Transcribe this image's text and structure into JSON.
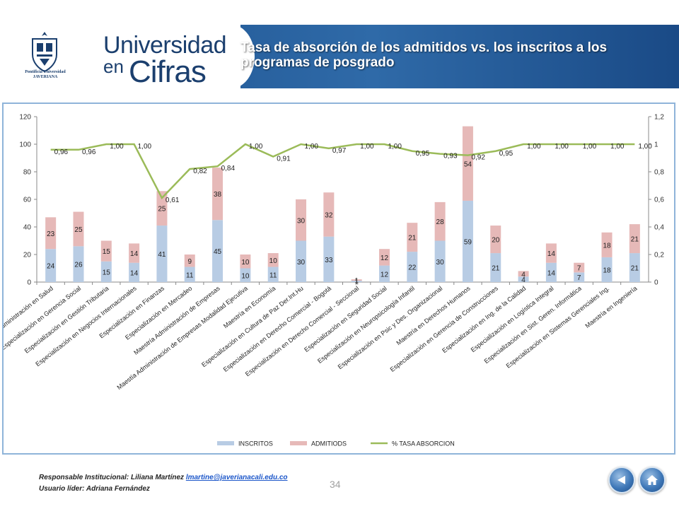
{
  "header": {
    "brand_line1": "Universidad",
    "brand_line2a": "en",
    "brand_line2b": "Cifras",
    "crest_text": "Pontificia Universidad JAVERIANA",
    "title": "Tasa de absorción de los admitidos vs. los inscritos a los programas de posgrado"
  },
  "footer": {
    "responsable_label": "Responsable Institucional: Liliana Martínez",
    "responsable_email": "lmartine@javerianacali.edu.co",
    "usuario": "Usuario líder: Adriana Fernández",
    "page_number": "34"
  },
  "colors": {
    "header_bg": "#1b4f8c",
    "inscritos": "#b8cce4",
    "admitidos": "#e6b9b8",
    "absorcion": "#9bbb59",
    "frame": "#8fb4d9"
  },
  "chart_data": {
    "type": "bar",
    "stacked": true,
    "categories": [
      "Especialización en Administración en Salud",
      "Especialización en Gerencia Social",
      "Especialización en Gestión Tributaria",
      "Especialización en Negocios Internacionales",
      "Especialización en Finanzas",
      "Especialización en Mercadeo",
      "Maestría Administración de Empresas",
      "Maestía Administración de Empresas Modalidad Ejecutiva",
      "Maestría en Economía",
      "Especialización en Cultura de Paz Der.Int.Hu",
      "Especialización en Derecho Comercial - Bogotá",
      "Especialización en Derecho Comercial - Seccional",
      "Especialización en Seguridad Social",
      "Especialización en Neuropsicología Infantil",
      "Especialización en Psic y Des. Organizacional",
      "Maestría en  Derechos Humanos",
      "Especialización en Gerencia de Construcciones",
      "Especialización en Ing. de la Calidad",
      "Especialización en Logística Integral",
      "Especialización en Sist. Geren. Informática",
      "Especialización en Sistemas Gerenciales Ing.",
      "Maestría en Ingeniería"
    ],
    "series": [
      {
        "name": "INSCRITOS",
        "axis": "left",
        "values": [
          24,
          26,
          15,
          14,
          41,
          11,
          45,
          10,
          11,
          30,
          33,
          1,
          12,
          22,
          30,
          59,
          21,
          4,
          14,
          7,
          18,
          21
        ]
      },
      {
        "name": "ADMITIODS",
        "axis": "left",
        "values": [
          23,
          25,
          15,
          14,
          25,
          9,
          38,
          10,
          10,
          30,
          32,
          1,
          12,
          21,
          28,
          54,
          20,
          4,
          14,
          7,
          18,
          21
        ]
      },
      {
        "name": "% TASA ABSORCION",
        "axis": "right",
        "type": "line",
        "values": [
          0.96,
          0.96,
          1.0,
          1.0,
          0.61,
          0.82,
          0.84,
          1.0,
          0.91,
          1.0,
          0.97,
          1.0,
          1.0,
          0.95,
          0.93,
          0.92,
          0.95,
          1.0,
          1.0,
          1.0,
          1.0,
          1.0
        ]
      }
    ],
    "line_labels": [
      "0,96",
      "0,96",
      "1,00",
      "1,00",
      "0,61",
      "0,82",
      "0,84",
      "1,00",
      "0,91",
      "1,00",
      "0,97",
      "1,00",
      "1,00",
      "0,95",
      "0,93",
      "0,92",
      "0,95",
      "1,00",
      "1,00",
      "1,00",
      "1,00",
      "1,00"
    ],
    "ylim": [
      0,
      120
    ],
    "yticks": [
      "0",
      "20",
      "40",
      "60",
      "80",
      "100",
      "120"
    ],
    "y2lim": [
      0,
      1.2
    ],
    "y2ticks": [
      "0",
      "0,2",
      "0,4",
      "0,6",
      "0,8",
      "1",
      "1,2"
    ],
    "grid": false,
    "legend_position": "bottom"
  }
}
